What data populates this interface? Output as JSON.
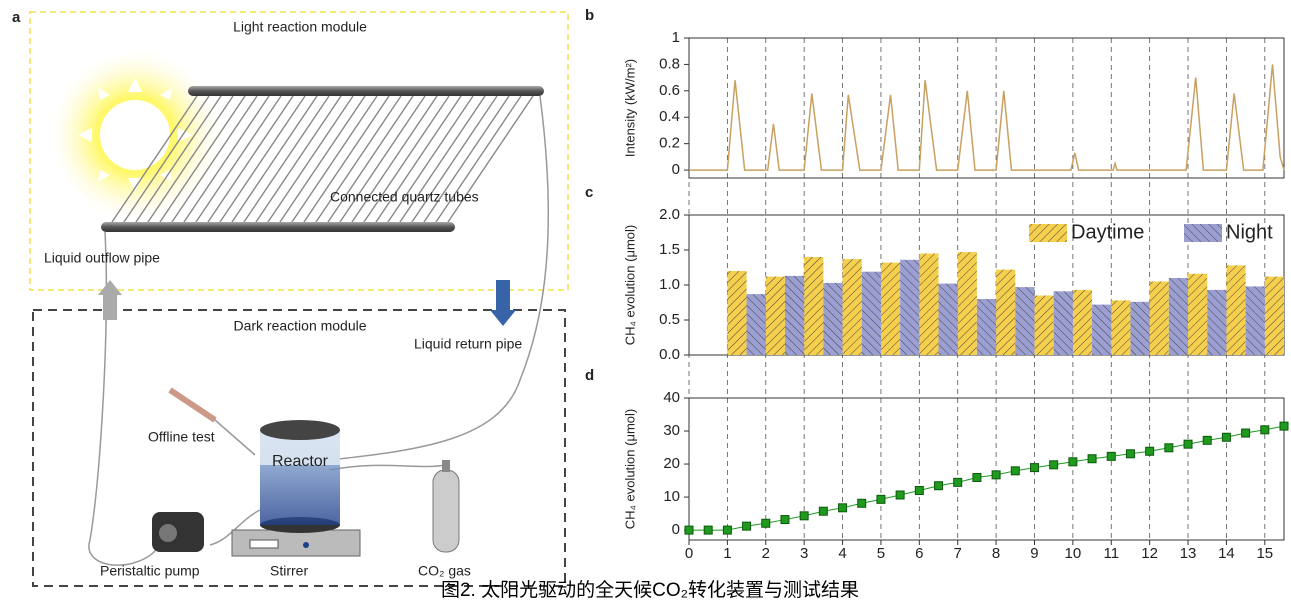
{
  "panel_a": {
    "label": "a",
    "light_module": "Light reaction module",
    "tubes": "Connected quartz tubes",
    "outflow": "Liquid outflow pipe",
    "return": "Liquid return pipe",
    "dark_module": "Dark reaction module",
    "offline": "Offline test",
    "reactor": "Reactor",
    "gas": "CO₂ gas",
    "pump": "Peristaltic pump",
    "stirrer": "Stirrer"
  },
  "caption": "图2.   太阳光驱动的全天候CO₂转化装置与测试结果",
  "chart_data": [
    {
      "type": "line",
      "panel": "b",
      "ylabel": "Intensity (kW/m²)",
      "color": "#c9a061",
      "xlim": [
        0,
        15.5
      ],
      "ylim": [
        -0.06,
        1
      ],
      "yticks": [
        0,
        0.2,
        0.4,
        0.6,
        0.8,
        1
      ],
      "series": [
        {
          "x": [
            0,
            1.0,
            1.2,
            1.45,
            2.05,
            2.2,
            2.35,
            3.0,
            3.2,
            3.45,
            4.0,
            4.15,
            4.45,
            5.0,
            5.25,
            5.45,
            6.0,
            6.15,
            6.45,
            7.0,
            7.25,
            7.45,
            8.0,
            8.2,
            8.4,
            9.95,
            10.05,
            10.15,
            11.05,
            11.1,
            11.15,
            12.95,
            13.2,
            13.4,
            14.0,
            14.2,
            14.45,
            14.95,
            15.2,
            15.4,
            15.5
          ],
          "values": [
            0,
            0,
            0.68,
            0,
            0,
            0.35,
            0,
            0,
            0.58,
            0,
            0,
            0.57,
            0,
            0,
            0.57,
            0,
            0,
            0.68,
            0,
            0,
            0.6,
            0,
            0,
            0.6,
            0,
            0,
            0.13,
            0,
            0,
            0.05,
            0,
            0,
            0.7,
            0,
            0,
            0.58,
            0,
            0,
            0.8,
            0.1,
            0
          ]
        }
      ]
    },
    {
      "type": "bar",
      "panel": "c",
      "ylabel": "CH₄ evolution (μmol)",
      "xlim": [
        0,
        15.5
      ],
      "ylim": [
        0,
        2
      ],
      "bar_width": 0.5,
      "legend": "top-right",
      "yticks": [
        {
          "value": 0,
          "label": "0.0"
        },
        {
          "value": 0.5,
          "label": "0.5"
        },
        {
          "value": 1,
          "label": "1.0"
        },
        {
          "value": 1.5,
          "label": "1.5"
        },
        {
          "value": 2,
          "label": "2.0"
        }
      ],
      "series": [
        {
          "name": "Daytime",
          "color": "#f6d04d",
          "x": [
            1.25,
            2.25,
            3.25,
            4.25,
            5.25,
            6.25,
            7.25,
            8.25,
            9.25,
            10.25,
            11.25,
            12.25,
            13.25,
            14.25,
            15.25
          ],
          "values": [
            1.2,
            1.12,
            1.4,
            1.37,
            1.32,
            1.45,
            1.47,
            1.22,
            0.85,
            0.93,
            0.78,
            1.05,
            1.16,
            1.28,
            1.12
          ]
        },
        {
          "name": "Night",
          "color": "#9b9fd2",
          "x": [
            1.75,
            2.75,
            3.75,
            4.75,
            5.75,
            6.75,
            7.75,
            8.75,
            9.75,
            10.75,
            11.75,
            12.75,
            13.75,
            14.75
          ],
          "values": [
            0.87,
            1.13,
            1.03,
            1.19,
            1.36,
            1.02,
            0.8,
            0.97,
            0.91,
            0.72,
            0.76,
            1.1,
            0.93,
            0.98
          ]
        }
      ]
    },
    {
      "type": "line",
      "panel": "d",
      "ylabel": "CH₄ evolution (μmol)",
      "color": "#1f9a1f",
      "markers": true,
      "xlim": [
        0,
        15.5
      ],
      "ylim": [
        -3,
        40
      ],
      "yticks": [
        0,
        10,
        20,
        30,
        40
      ],
      "xticks": [
        0,
        1,
        2,
        3,
        4,
        5,
        6,
        7,
        8,
        9,
        10,
        11,
        12,
        13,
        14,
        15
      ],
      "series": [
        {
          "x": [
            0,
            0.5,
            1,
            1.5,
            2,
            2.5,
            3,
            3.5,
            4,
            4.5,
            5,
            5.5,
            6,
            6.5,
            7,
            7.5,
            8,
            8.5,
            9,
            9.5,
            10,
            10.5,
            11,
            11.5,
            12,
            12.5,
            13,
            13.5,
            14,
            14.5,
            15,
            15.5
          ],
          "values": [
            0,
            0,
            0,
            1.2,
            2.07,
            3.19,
            4.32,
            5.72,
            6.75,
            8.12,
            9.31,
            10.63,
            11.99,
            13.44,
            14.46,
            15.93,
            16.73,
            17.95,
            18.92,
            19.77,
            20.68,
            21.61,
            22.33,
            23.11,
            23.87,
            24.92,
            26.02,
            27.18,
            28.11,
            29.39,
            30.37,
            31.49
          ]
        }
      ]
    }
  ]
}
